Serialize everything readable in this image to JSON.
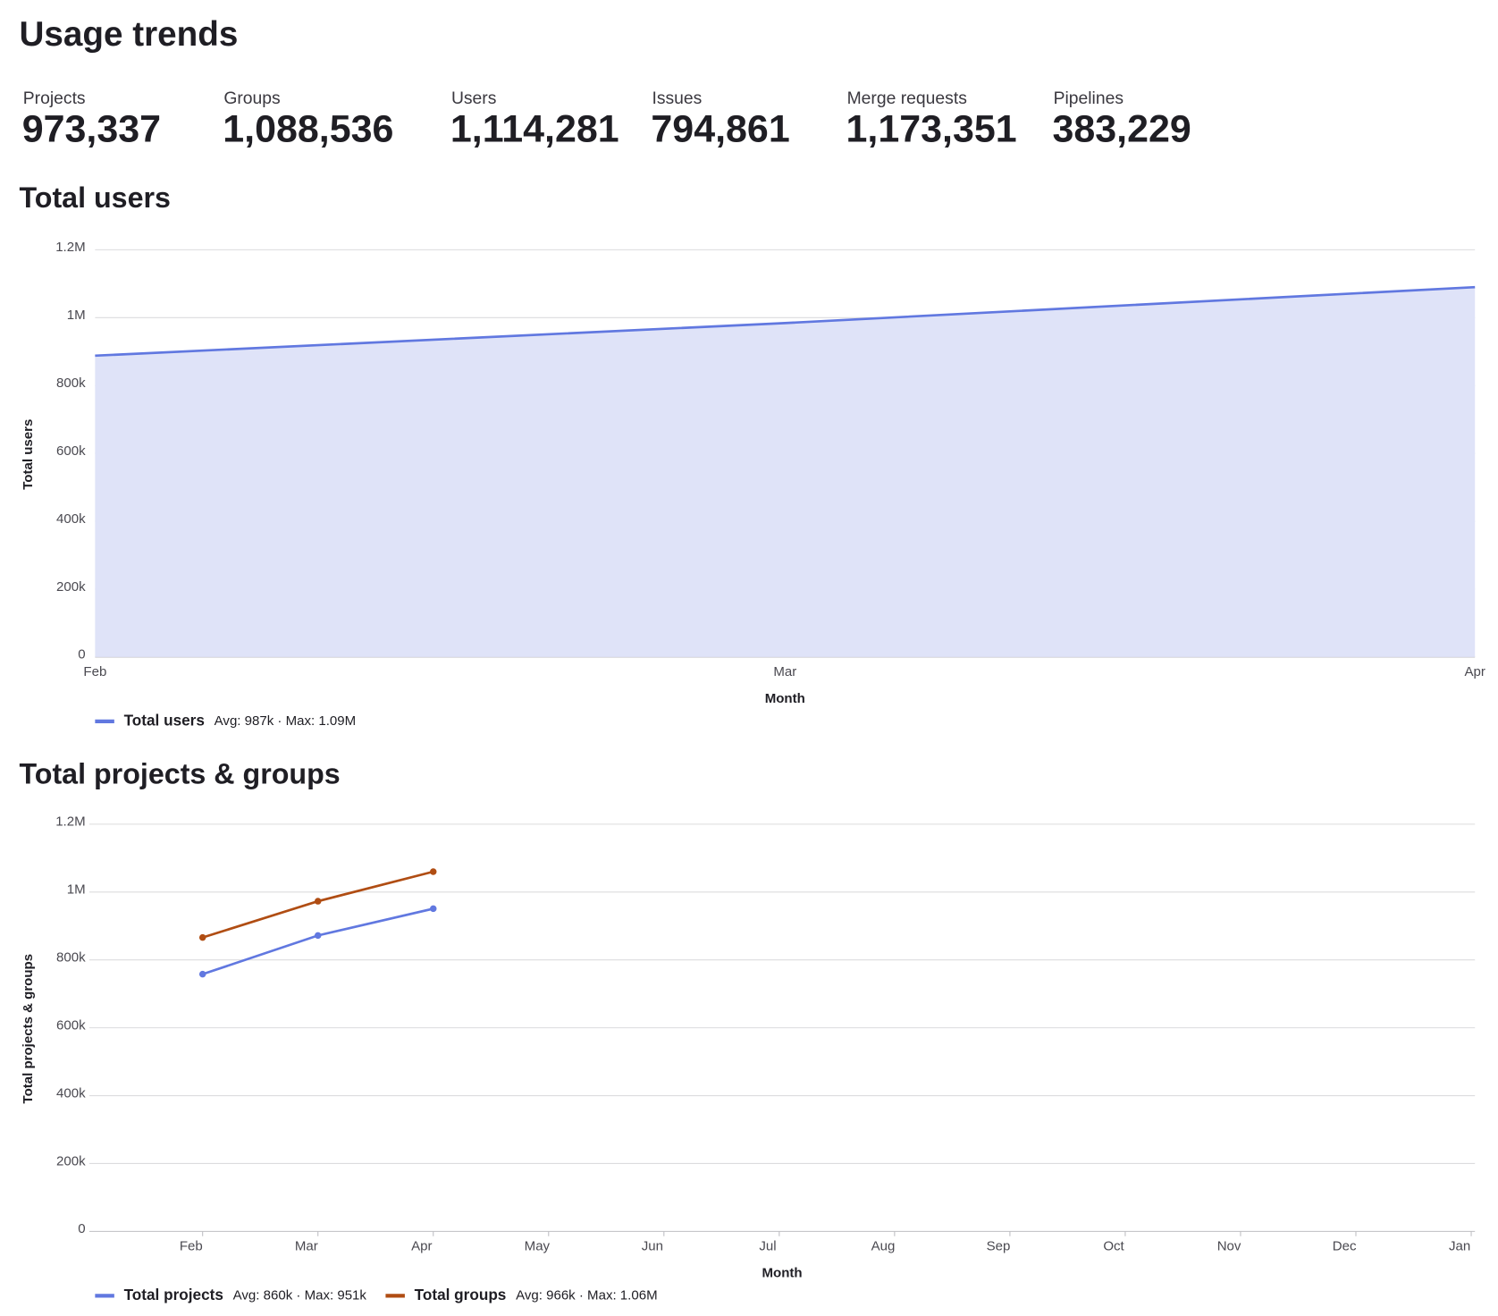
{
  "title": "Usage trends",
  "stats": [
    {
      "label": "Projects",
      "value": "973,337"
    },
    {
      "label": "Groups",
      "value": "1,088,536"
    },
    {
      "label": "Users",
      "value": "1,114,281"
    },
    {
      "label": "Issues",
      "value": "794,861"
    },
    {
      "label": "Merge requests",
      "value": "1,173,351"
    },
    {
      "label": "Pipelines",
      "value": "383,229"
    }
  ],
  "chart_data": [
    {
      "type": "area",
      "title": "Total users",
      "x_label": "Month",
      "y_label": "Total users",
      "categories": [
        "Feb",
        "Mar",
        "Apr"
      ],
      "series": [
        {
          "name": "Total users",
          "color": "#6178e0",
          "fill": "#dfe3f8",
          "summary": "Avg: 987k · Max: 1.09M",
          "values": [
            888000,
            984000,
            1090000
          ]
        }
      ],
      "ylim": [
        0,
        1200000
      ],
      "yticks": [
        0,
        {
          "value": 200000,
          "label": "200k"
        },
        {
          "value": 400000,
          "label": "400k"
        },
        {
          "value": 600000,
          "label": "600k"
        },
        {
          "value": 800000,
          "label": "800k"
        },
        {
          "value": 1000000,
          "label": "1M"
        },
        {
          "value": 1200000,
          "label": "1.2M"
        }
      ],
      "grid": true
    },
    {
      "type": "line",
      "title": "Total projects & groups",
      "x_label": "Month",
      "y_label": "Total projects & groups",
      "categories": [
        "Feb",
        "Mar",
        "Apr",
        "May",
        "Jun",
        "Jul",
        "Aug",
        "Sep",
        "Oct",
        "Nov",
        "Dec",
        "Jan"
      ],
      "series": [
        {
          "name": "Total projects",
          "color": "#6178e0",
          "summary": "Avg: 860k · Max: 951k",
          "values": [
            758000,
            872000,
            951000,
            null,
            null,
            null,
            null,
            null,
            null,
            null,
            null,
            null
          ]
        },
        {
          "name": "Total groups",
          "color": "#b04d13",
          "summary": "Avg: 966k · Max: 1.06M",
          "values": [
            866000,
            973000,
            1060000,
            null,
            null,
            null,
            null,
            null,
            null,
            null,
            null,
            null
          ]
        }
      ],
      "ylim": [
        0,
        1200000
      ],
      "yticks": [
        0,
        {
          "value": 200000,
          "label": "200k"
        },
        {
          "value": 400000,
          "label": "400k"
        },
        {
          "value": 600000,
          "label": "600k"
        },
        {
          "value": 800000,
          "label": "800k"
        },
        {
          "value": 1000000,
          "label": "1M"
        },
        {
          "value": 1200000,
          "label": "1.2M"
        }
      ],
      "grid": true
    }
  ]
}
